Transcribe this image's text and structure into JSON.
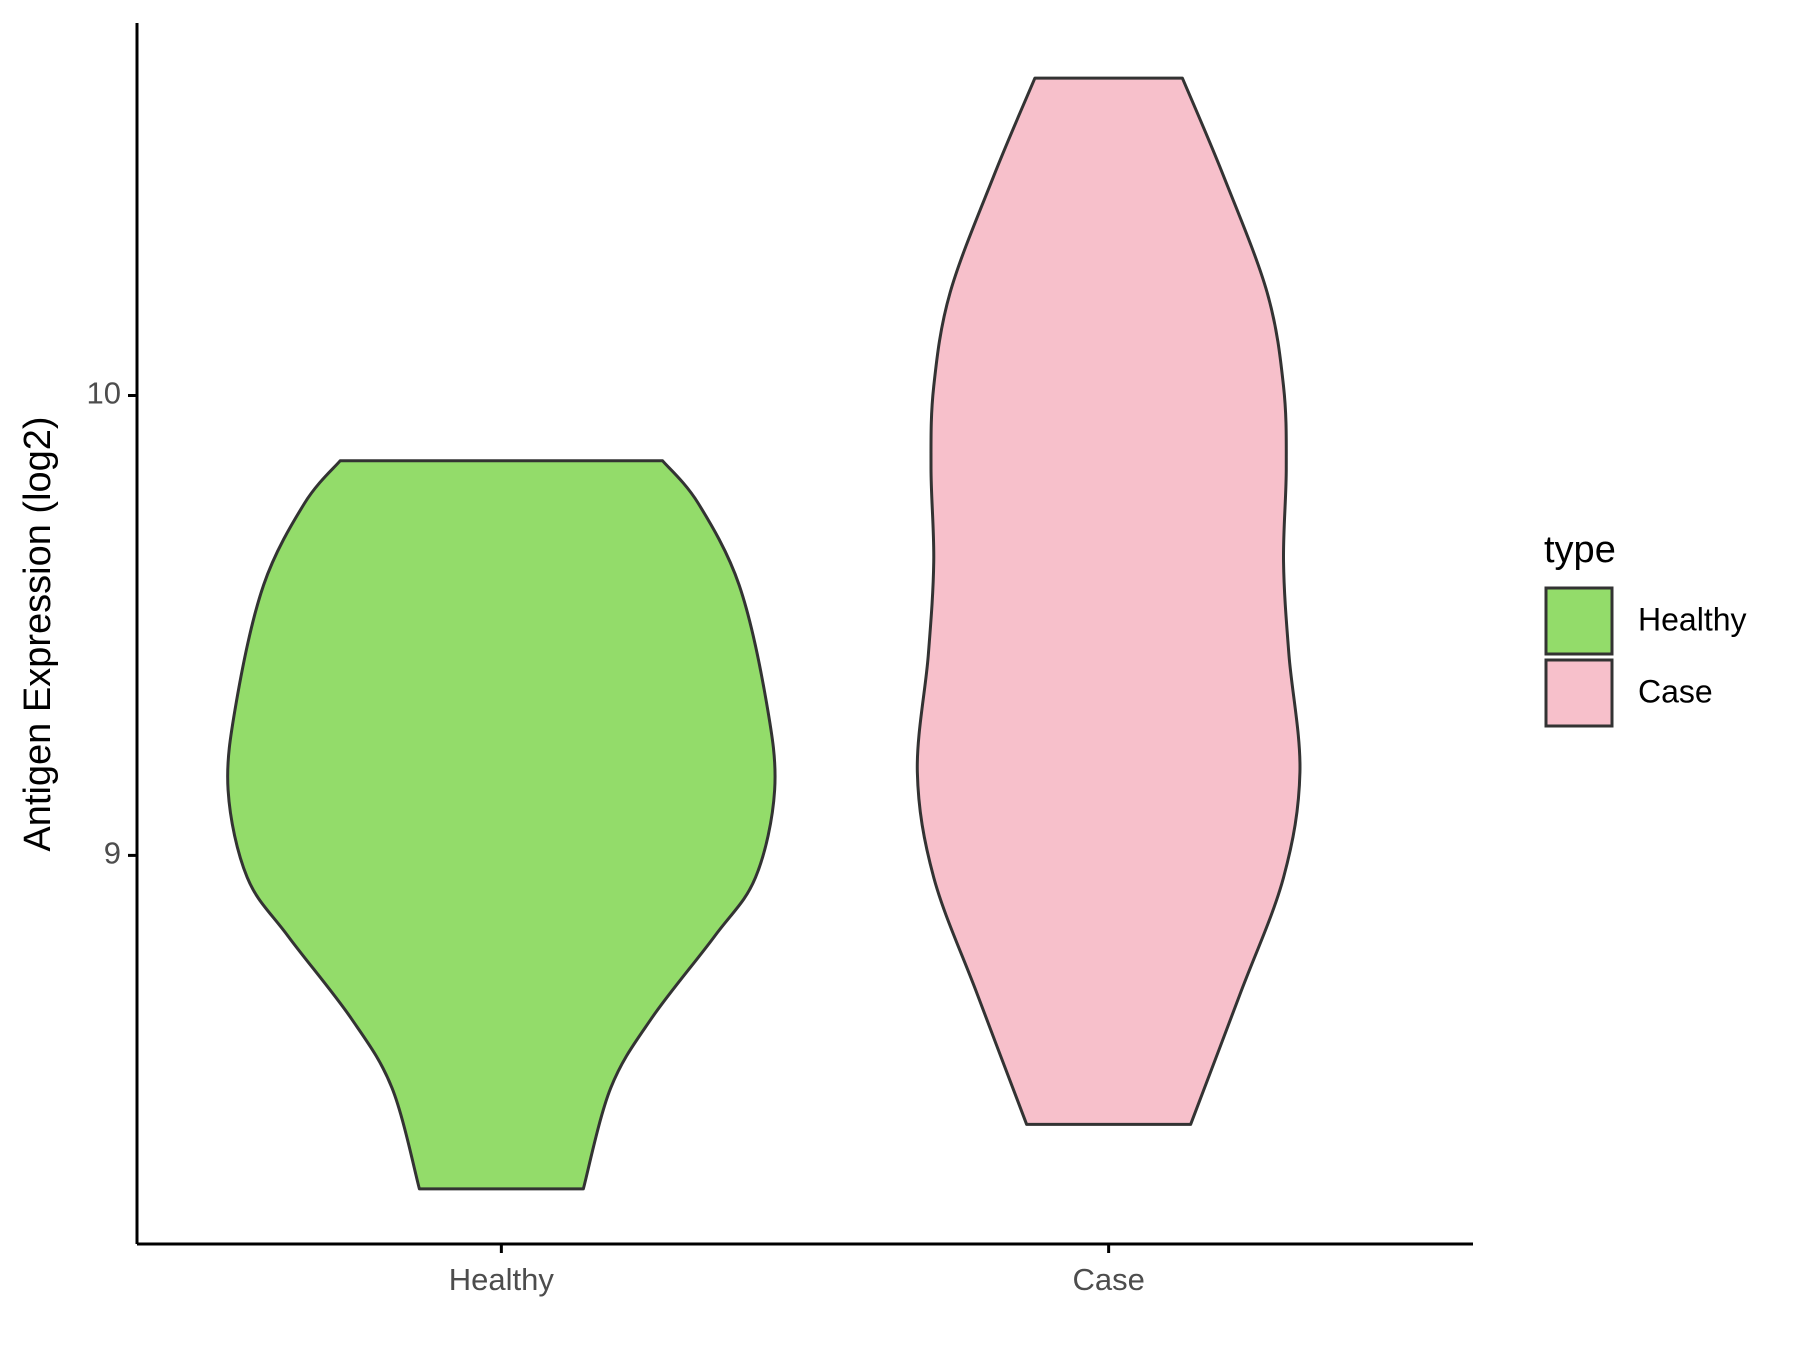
{
  "chart_data": {
    "type": "violin",
    "y_label": "Antigen Expression (log2)",
    "legend_title": "type",
    "legend": "right",
    "categories": [
      "Healthy",
      "Case"
    ],
    "ylim": [
      8.155,
      10.81
    ],
    "yticks": [
      9,
      10
    ],
    "series": [
      {
        "name": "Healthy",
        "color": "#93dc6a",
        "y": [
          9.858,
          9.766,
          9.588,
          9.333,
          9.142,
          8.952,
          8.824,
          8.646,
          8.494,
          8.275
        ],
        "width": [
          0.59,
          0.72,
          0.87,
          0.97,
          1,
          0.93,
          0.78,
          0.55,
          0.4,
          0.3
        ]
      },
      {
        "name": "Case",
        "color": "#f7c0cb",
        "y": [
          10.69,
          10.478,
          10.224,
          10.02,
          9.842,
          9.639,
          9.435,
          9.181,
          8.952,
          8.697,
          8.415
        ],
        "width": [
          0.27,
          0.42,
          0.58,
          0.64,
          0.65,
          0.64,
          0.66,
          0.7,
          0.64,
          0.48,
          0.3
        ]
      }
    ]
  }
}
